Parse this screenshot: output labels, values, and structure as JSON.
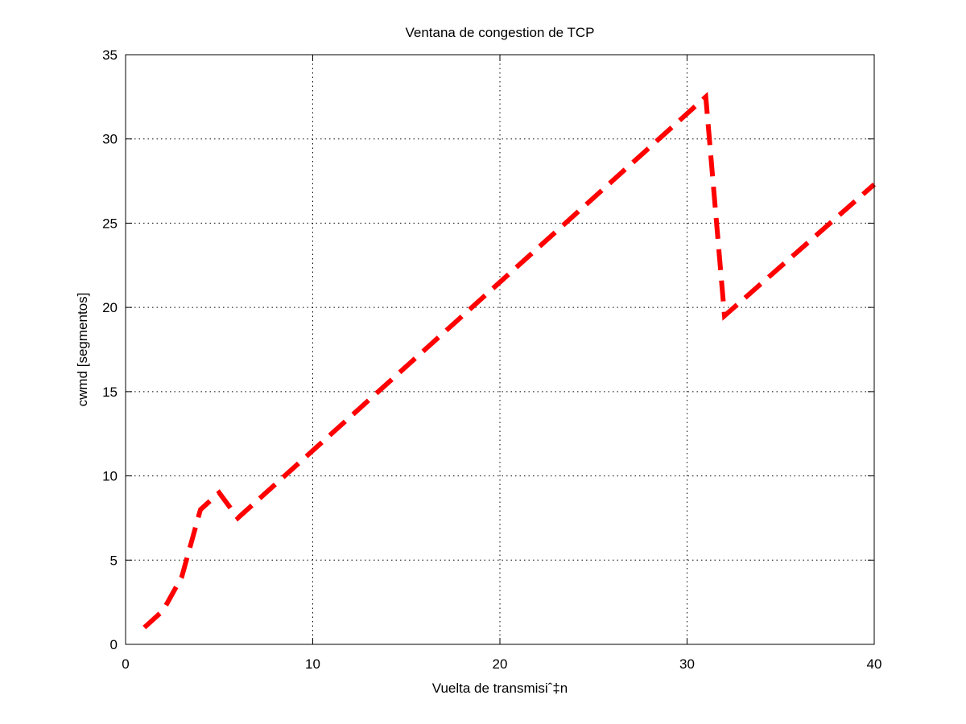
{
  "chart_data": {
    "type": "line",
    "title": "Ventana de congestion de TCP",
    "xlabel": "Vuelta de transmisiˆ‡n",
    "ylabel": "cwmd [segmentos]",
    "xlim": [
      0,
      40
    ],
    "ylim": [
      0,
      35
    ],
    "xticks": [
      0,
      10,
      20,
      30,
      40
    ],
    "yticks": [
      0,
      5,
      10,
      15,
      20,
      25,
      30,
      35
    ],
    "grid": true,
    "series": [
      {
        "color": "#ff0000",
        "line_style": "dashed",
        "x": [
          1,
          2,
          3,
          4,
          5,
          6,
          31,
          32,
          40
        ],
        "y": [
          1,
          2,
          4,
          8,
          9,
          7.5,
          32.5,
          19.5,
          27.3
        ]
      }
    ]
  }
}
